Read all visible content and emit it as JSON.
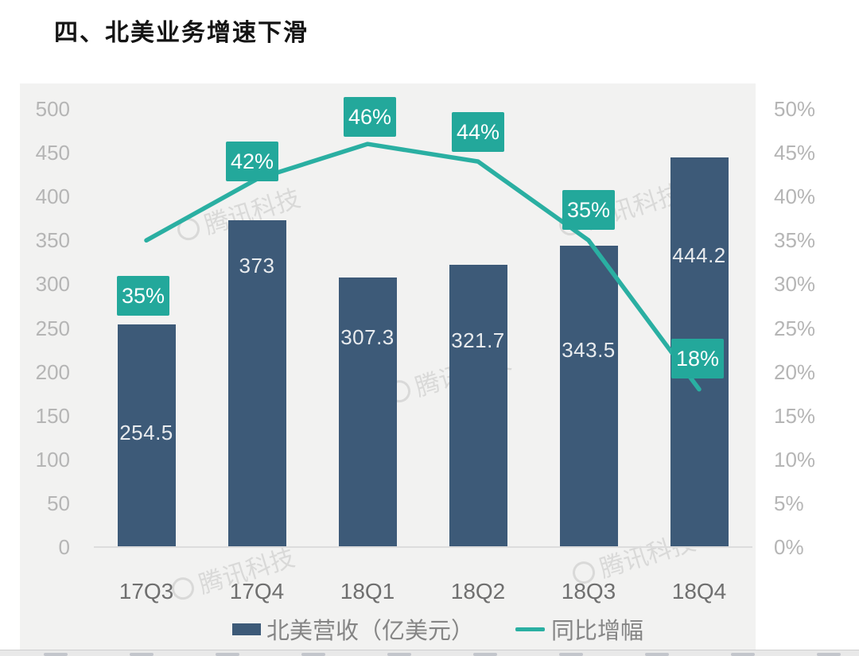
{
  "page": {
    "title": "四、北美业务增速下滑"
  },
  "watermark": {
    "text": "腾讯科技"
  },
  "chart_data": {
    "type": "combo",
    "categories": [
      "17Q3",
      "17Q4",
      "18Q1",
      "18Q2",
      "18Q3",
      "18Q4"
    ],
    "series": [
      {
        "name": "北美营收（亿美元）",
        "chart_type": "bar",
        "axis": "left",
        "color": "#3d5a78",
        "values": [
          254.5,
          373,
          307.3,
          321.7,
          343.5,
          444.2
        ],
        "value_labels": [
          "254.5",
          "373",
          "307.3",
          "321.7",
          "343.5",
          "444.2"
        ]
      },
      {
        "name": "同比增幅",
        "chart_type": "line",
        "axis": "right",
        "color": "#2aafa2",
        "values": [
          35,
          42,
          46,
          44,
          35,
          18
        ],
        "value_labels": [
          "35%",
          "42%",
          "46%",
          "44%",
          "35%",
          "18%"
        ],
        "label_bg_color": "#23a89b"
      }
    ],
    "left_axis": {
      "min": 0,
      "max": 500,
      "step": 50,
      "tick_labels": [
        "500",
        "450",
        "400",
        "350",
        "300",
        "250",
        "200",
        "150",
        "100",
        "50",
        "0"
      ]
    },
    "right_axis": {
      "min": 0,
      "max": 50,
      "step": 5,
      "tick_labels": [
        "50%",
        "45%",
        "40%",
        "35%",
        "30%",
        "25%",
        "20%",
        "15%",
        "10%",
        "5%",
        "0%"
      ]
    },
    "legend": {
      "position": "bottom",
      "items": [
        {
          "label": "北美营收（亿美元）",
          "swatch": "bar",
          "color": "#3d5a78"
        },
        {
          "label": "同比增幅",
          "swatch": "line",
          "color": "#2aafa2"
        }
      ]
    },
    "grid": false
  }
}
